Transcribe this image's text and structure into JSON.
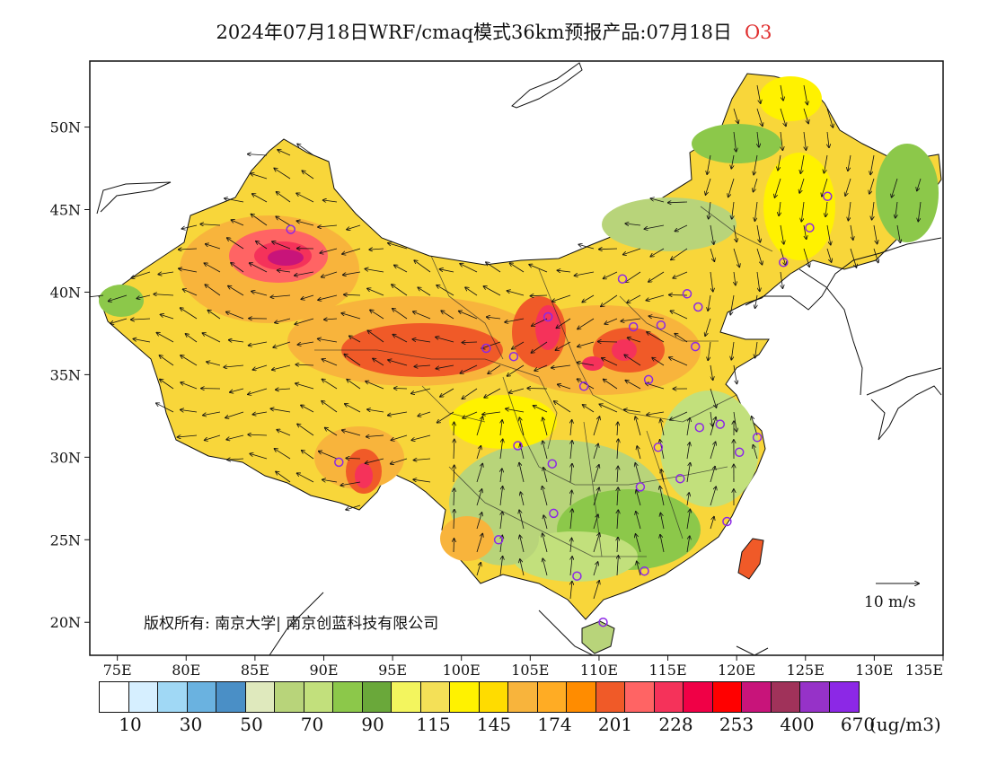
{
  "title": {
    "main": "2024年07月18日WRF/cmaq模式36km预报产品:07月18日",
    "species": "O3"
  },
  "axes": {
    "lat_labels": [
      "50N",
      "45N",
      "40N",
      "35N",
      "30N",
      "25N",
      "20N"
    ],
    "lat_values": [
      50,
      45,
      40,
      35,
      30,
      25,
      20
    ],
    "lon_labels": [
      "75E",
      "80E",
      "85E",
      "90E",
      "95E",
      "100E",
      "105E",
      "110E",
      "115E",
      "120E",
      "125E",
      "130E",
      "135E"
    ],
    "lon_values": [
      75,
      80,
      85,
      90,
      95,
      100,
      105,
      110,
      115,
      120,
      125,
      130,
      135
    ],
    "lon_range": [
      73,
      135
    ],
    "lat_range": [
      18,
      54
    ]
  },
  "copyright": "版权所有: 南京大学| 南京创蓝科技有限公司",
  "wind_reference": "10 m/s",
  "legend": {
    "unit": "(ug/m3)",
    "colors": [
      "#ffffff",
      "#d6efff",
      "#a0d8f5",
      "#6ab2e0",
      "#4a8fc6",
      "#dfe9bd",
      "#b8d47a",
      "#c2e07c",
      "#8cc84a",
      "#6aa83a",
      "#f3f55e",
      "#f4e057",
      "#fff200",
      "#ffdc00",
      "#f8b43c",
      "#ffac24",
      "#ff8c00",
      "#f05a28",
      "#ff6464",
      "#f5325a",
      "#f00046",
      "#ff0000",
      "#c8147a",
      "#a0325a",
      "#9632c8",
      "#8c28e6"
    ],
    "labels": [
      "10",
      "30",
      "50",
      "70",
      "90",
      "115",
      "145",
      "174",
      "201",
      "228",
      "253",
      "400",
      "670"
    ]
  },
  "map_colors": {
    "base": "#f8d63a",
    "land_low": "#b8d47a",
    "land_mid": "#8cc84a",
    "orange": "#f8b43c",
    "red": "#f05a28",
    "pink": "#f5325a",
    "magenta": "#c8147a",
    "station": "#8c28e6"
  }
}
